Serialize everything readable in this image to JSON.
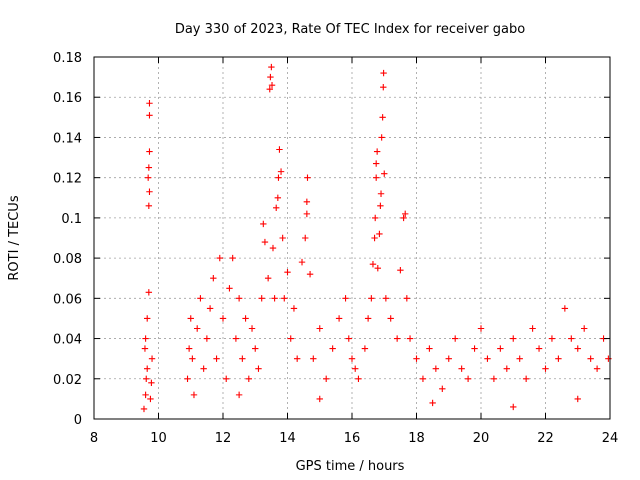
{
  "chart_data": {
    "type": "scatter",
    "title": "Day 330 of 2023, Rate Of TEC Index for receiver gabo",
    "xlabel": "GPS time / hours",
    "ylabel": "ROTI / TECUs",
    "xlim": [
      8,
      24
    ],
    "ylim": [
      0,
      0.18
    ],
    "x_ticks": [
      "8",
      "10",
      "12",
      "14",
      "16",
      "18",
      "20",
      "22",
      "24"
    ],
    "y_ticks": [
      "0",
      "0.02",
      "0.04",
      "0.06",
      "0.08",
      "0.1",
      "0.12",
      "0.14",
      "0.16",
      "0.18"
    ],
    "grid": true,
    "marker": "plus",
    "color": "#ff0000",
    "series": [
      {
        "points": [
          [
            9.55,
            0.005
          ],
          [
            9.6,
            0.012
          ],
          [
            9.62,
            0.02
          ],
          [
            9.65,
            0.025
          ],
          [
            9.58,
            0.035
          ],
          [
            9.6,
            0.04
          ],
          [
            9.65,
            0.05
          ],
          [
            9.7,
            0.063
          ],
          [
            9.7,
            0.106
          ],
          [
            9.72,
            0.113
          ],
          [
            9.68,
            0.12
          ],
          [
            9.7,
            0.125
          ],
          [
            9.72,
            0.133
          ],
          [
            9.72,
            0.151
          ],
          [
            9.72,
            0.157
          ],
          [
            9.75,
            0.01
          ],
          [
            9.78,
            0.018
          ],
          [
            9.8,
            0.03
          ],
          [
            10.9,
            0.02
          ],
          [
            10.95,
            0.035
          ],
          [
            11.0,
            0.05
          ],
          [
            11.05,
            0.03
          ],
          [
            11.1,
            0.012
          ],
          [
            11.2,
            0.045
          ],
          [
            11.3,
            0.06
          ],
          [
            11.4,
            0.025
          ],
          [
            11.5,
            0.04
          ],
          [
            11.6,
            0.055
          ],
          [
            11.7,
            0.07
          ],
          [
            11.8,
            0.03
          ],
          [
            11.9,
            0.08
          ],
          [
            12.0,
            0.05
          ],
          [
            12.1,
            0.02
          ],
          [
            12.2,
            0.065
          ],
          [
            12.3,
            0.08
          ],
          [
            12.4,
            0.04
          ],
          [
            12.5,
            0.06
          ],
          [
            12.6,
            0.03
          ],
          [
            12.7,
            0.05
          ],
          [
            12.8,
            0.02
          ],
          [
            12.9,
            0.045
          ],
          [
            13.0,
            0.035
          ],
          [
            13.1,
            0.025
          ],
          [
            13.2,
            0.06
          ],
          [
            13.25,
            0.097
          ],
          [
            13.3,
            0.088
          ],
          [
            13.4,
            0.07
          ],
          [
            13.45,
            0.164
          ],
          [
            13.47,
            0.17
          ],
          [
            13.5,
            0.175
          ],
          [
            13.52,
            0.166
          ],
          [
            13.55,
            0.085
          ],
          [
            13.6,
            0.06
          ],
          [
            13.65,
            0.105
          ],
          [
            13.7,
            0.11
          ],
          [
            13.72,
            0.12
          ],
          [
            13.75,
            0.134
          ],
          [
            13.8,
            0.123
          ],
          [
            13.85,
            0.09
          ],
          [
            13.9,
            0.06
          ],
          [
            14.0,
            0.073
          ],
          [
            14.1,
            0.04
          ],
          [
            14.2,
            0.055
          ],
          [
            14.3,
            0.03
          ],
          [
            14.45,
            0.078
          ],
          [
            14.55,
            0.09
          ],
          [
            14.6,
            0.102
          ],
          [
            14.6,
            0.108
          ],
          [
            14.62,
            0.12
          ],
          [
            14.7,
            0.072
          ],
          [
            14.8,
            0.03
          ],
          [
            15.0,
            0.045
          ],
          [
            15.2,
            0.02
          ],
          [
            15.4,
            0.035
          ],
          [
            15.6,
            0.05
          ],
          [
            15.8,
            0.06
          ],
          [
            15.9,
            0.04
          ],
          [
            16.0,
            0.03
          ],
          [
            16.1,
            0.025
          ],
          [
            16.2,
            0.02
          ],
          [
            16.4,
            0.035
          ],
          [
            16.5,
            0.05
          ],
          [
            16.6,
            0.06
          ],
          [
            16.65,
            0.077
          ],
          [
            16.7,
            0.09
          ],
          [
            16.72,
            0.1
          ],
          [
            16.75,
            0.12
          ],
          [
            16.75,
            0.127
          ],
          [
            16.78,
            0.133
          ],
          [
            16.8,
            0.075
          ],
          [
            16.85,
            0.092
          ],
          [
            16.88,
            0.106
          ],
          [
            16.9,
            0.112
          ],
          [
            16.92,
            0.14
          ],
          [
            16.95,
            0.15
          ],
          [
            16.97,
            0.165
          ],
          [
            16.98,
            0.172
          ],
          [
            17.0,
            0.122
          ],
          [
            17.05,
            0.06
          ],
          [
            17.2,
            0.05
          ],
          [
            17.4,
            0.04
          ],
          [
            17.5,
            0.074
          ],
          [
            17.6,
            0.1
          ],
          [
            17.65,
            0.102
          ],
          [
            17.7,
            0.06
          ],
          [
            17.8,
            0.04
          ],
          [
            18.0,
            0.03
          ],
          [
            18.2,
            0.02
          ],
          [
            18.4,
            0.035
          ],
          [
            18.6,
            0.025
          ],
          [
            18.8,
            0.015
          ],
          [
            19.0,
            0.03
          ],
          [
            19.2,
            0.04
          ],
          [
            19.4,
            0.025
          ],
          [
            19.6,
            0.02
          ],
          [
            19.8,
            0.035
          ],
          [
            20.0,
            0.045
          ],
          [
            20.2,
            0.03
          ],
          [
            20.4,
            0.02
          ],
          [
            20.6,
            0.035
          ],
          [
            20.8,
            0.025
          ],
          [
            21.0,
            0.04
          ],
          [
            21.2,
            0.03
          ],
          [
            21.4,
            0.02
          ],
          [
            21.6,
            0.045
          ],
          [
            21.8,
            0.035
          ],
          [
            22.0,
            0.025
          ],
          [
            22.2,
            0.04
          ],
          [
            22.4,
            0.03
          ],
          [
            22.6,
            0.055
          ],
          [
            22.8,
            0.04
          ],
          [
            23.0,
            0.035
          ],
          [
            23.2,
            0.045
          ],
          [
            23.4,
            0.03
          ],
          [
            23.6,
            0.025
          ],
          [
            23.8,
            0.04
          ],
          [
            23.95,
            0.03
          ],
          [
            12.5,
            0.012
          ],
          [
            15.0,
            0.01
          ],
          [
            18.5,
            0.008
          ],
          [
            21.0,
            0.006
          ],
          [
            23.0,
            0.01
          ]
        ]
      }
    ]
  }
}
